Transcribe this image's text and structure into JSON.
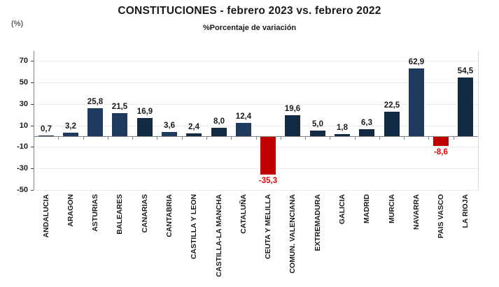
{
  "header": {
    "title": "CONSTITUCIONES  - febrero 2023 vs. febrero 2022",
    "subtitle": "%Porcentaje de variación",
    "y_axis_unit": "(%)"
  },
  "colors": {
    "bar_navy_medium": "#1f3a5f",
    "bar_navy_dark": "#132a44",
    "bar_negative_red": "#c00000",
    "negative_label_red": "#e60000",
    "positive_label_text": "#1a1a1a",
    "gridline": "#d9d9d9",
    "axis_line": "#808080",
    "tick": "#404040"
  },
  "chart_data": {
    "type": "bar",
    "title": "CONSTITUCIONES  - febrero 2023 vs. febrero 2022",
    "subtitle": "%Porcentaje de variación",
    "xlabel": "",
    "ylabel": "(%)",
    "ylim": [
      -50,
      70
    ],
    "yticks": [
      70,
      50,
      30,
      10,
      -10,
      -30,
      -50
    ],
    "grid": true,
    "legend": false,
    "categories": [
      "ANDALUCIA",
      "ARAGON",
      "ASTURIAS",
      "BALEARES",
      "CANARIAS",
      "CANTABRIA",
      "CASTILLA Y LEON",
      "CASTILLA-LA MANCHA",
      "CATALUÑA",
      "CEUTA Y MELILLA",
      "COMUN. VALENCIANA",
      "EXTREMADURA",
      "GALICIA",
      "MADRID",
      "MURCIA",
      "NAVARRA",
      "PAIS VASCO",
      "LA RIOJA"
    ],
    "values": [
      0.7,
      3.2,
      25.8,
      21.5,
      16.9,
      3.6,
      2.4,
      8.0,
      12.4,
      -35.3,
      19.6,
      5.0,
      1.8,
      6.3,
      22.5,
      62.9,
      -8.6,
      54.5
    ],
    "value_labels": [
      "0,7",
      "3,2",
      "25,8",
      "21,5",
      "16,9",
      "3,6",
      "2,4",
      "8,0",
      "12,4",
      "-35,3",
      "19,6",
      "5,0",
      "1,8",
      "6,3",
      "22,5",
      "62,9",
      "-8,6",
      "54,5"
    ],
    "bar_colors": [
      "#1f3a5f",
      "#1f3a5f",
      "#1f3a5f",
      "#1f3a5f",
      "#132a44",
      "#1f3a5f",
      "#132a44",
      "#132a44",
      "#1f3a5f",
      "#c00000",
      "#132a44",
      "#132a44",
      "#132a44",
      "#132a44",
      "#132a44",
      "#1f3a5f",
      "#c00000",
      "#132a44"
    ]
  }
}
